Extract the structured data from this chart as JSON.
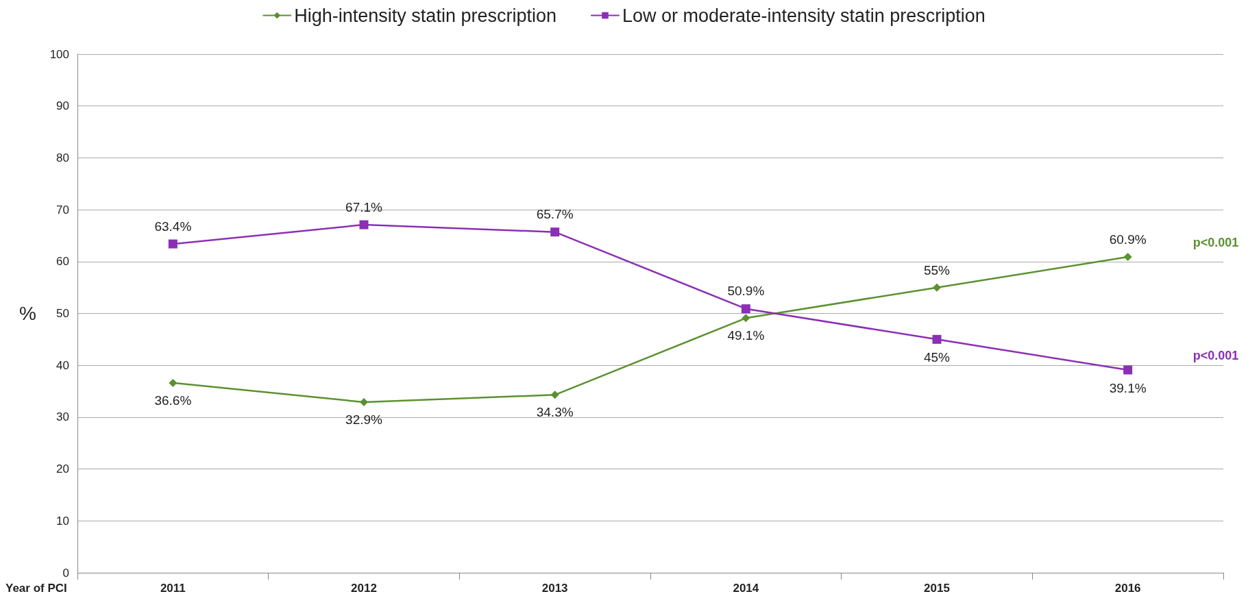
{
  "chart_data": {
    "type": "line",
    "xlabel": "Year of PCI",
    "ylabel": "%",
    "categories": [
      "2011",
      "2012",
      "2013",
      "2014",
      "2015",
      "2016"
    ],
    "series": [
      {
        "name": "High-intensity statin prescription",
        "color": "#5b9130",
        "marker": "diamond",
        "values": [
          36.6,
          32.9,
          34.3,
          49.1,
          55,
          60.9
        ],
        "value_labels": [
          "36.6%",
          "32.9%",
          "34.3%",
          "49.1%",
          "55%",
          "60.9%"
        ]
      },
      {
        "name": "Low or moderate-intensity statin prescription",
        "color": "#8b2fb5",
        "marker": "square",
        "values": [
          63.4,
          67.1,
          65.7,
          50.9,
          45,
          39.1
        ],
        "value_labels": [
          "63.4%",
          "67.1%",
          "65.7%",
          "50.9%",
          "45%",
          "39.1%"
        ]
      }
    ],
    "ylim": [
      0,
      100
    ],
    "yticks": [
      0,
      10,
      20,
      30,
      40,
      50,
      60,
      70,
      80,
      90,
      100
    ],
    "grid": "y",
    "legend": "top",
    "annotations": [
      "p<0.001",
      "p<0.001"
    ]
  }
}
